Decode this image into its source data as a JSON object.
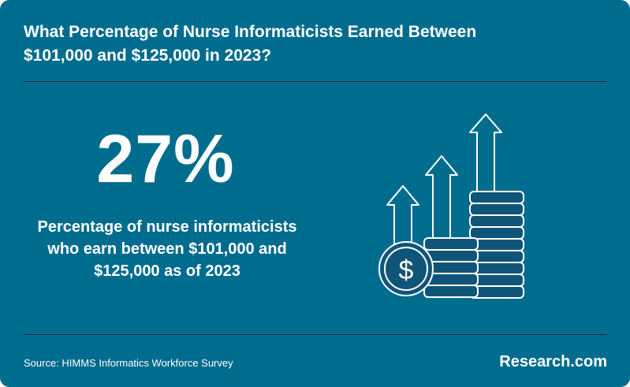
{
  "header": {
    "title_line1": "What Percentage of Nurse Informaticists Earned Between",
    "title_line2": "$101,000 and $125,000 in 2023?"
  },
  "stat": {
    "value": "27%",
    "description_line1": "Percentage of nurse informaticists",
    "description_line2": "who earn between $101,000 and",
    "description_line3": "$125,000 as of 2023"
  },
  "illustration": {
    "icon": "coins-growth-arrows-icon",
    "coin_symbol": "$"
  },
  "footer": {
    "source": "Source: HIMMS Informatics Workforce Survey",
    "brand": "Research.com"
  },
  "colors": {
    "background": "#006c8e",
    "text": "#ffffff",
    "divider": "#1b2d3e",
    "icon_fill": "#0f5578",
    "icon_stroke": "#ffffff"
  }
}
